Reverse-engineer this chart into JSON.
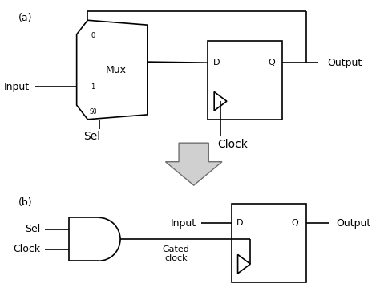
{
  "bg_color": "#ffffff",
  "line_color": "#000000",
  "label_a": "(a)",
  "label_b": "(b)",
  "mux_label": "Mux",
  "input_label": "Input",
  "sel_label": "Sel",
  "clock_label": "Clock",
  "output_label": "Output",
  "input_b_label": "Input",
  "sel_b_label": "Sel",
  "clock_b_label": "Clock",
  "output_b_label": "Output",
  "gated_label1": "Gated",
  "gated_label2": "clock",
  "d_label": "D",
  "q_label": "Q",
  "s0_label": "S0",
  "zero_label": "0",
  "one_label": "1",
  "arrow_fill": "#d0d0d0",
  "arrow_edge": "#707070",
  "lw": 1.2
}
